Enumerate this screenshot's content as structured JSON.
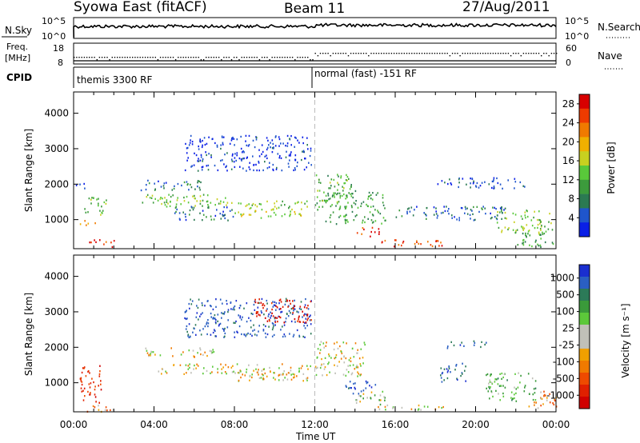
{
  "header": {
    "station": "Syowa East (fitACF)",
    "beam": "Beam 11",
    "date": "27/Aug/2011"
  },
  "top_panels": {
    "nsky_label": "N.Sky",
    "nsky_ticks": [
      "10^5",
      "10^0"
    ],
    "nsearch_label": "N.Search",
    "nsearch_ticks": [
      "10^5",
      "10^0"
    ],
    "freq_label": "Freq.",
    "freq_unit": "[MHz]",
    "freq_ticks": [
      "18",
      "8"
    ],
    "nave_label": "Nave",
    "nave_ticks": [
      "60",
      "0"
    ],
    "cpid_label": "CPID",
    "cpid_segments": [
      {
        "label": "themis 3300 RF",
        "start_hour": 0,
        "end_hour": 12
      },
      {
        "label": "normal (fast) -151 RF",
        "start_hour": 12,
        "end_hour": 24
      }
    ]
  },
  "x_axis": {
    "label": "Time UT",
    "ticks": [
      "00:00",
      "04:00",
      "08:00",
      "12:00",
      "16:00",
      "20:00",
      "00:00"
    ],
    "range_hours": [
      0,
      24
    ]
  },
  "chart_data": [
    {
      "type": "heatmap",
      "parameter": "power",
      "ylabel": "Slant Range [km]",
      "y_ticks": [
        "1000",
        "2000",
        "3000",
        "4000"
      ],
      "ylim": [
        180,
        4600
      ],
      "colorbar": {
        "label": "Power [dB]",
        "ticks": [
          "4",
          "8",
          "12",
          "16",
          "20",
          "24",
          "28"
        ],
        "range": [
          0,
          30
        ],
        "colors": [
          "#0a1fe6",
          "#1f55cc",
          "#2b7a52",
          "#3c9b3c",
          "#59c83a",
          "#c8d020",
          "#f0b000",
          "#f07a00",
          "#ee3b00",
          "#d80000"
        ]
      },
      "regions": [
        {
          "x": [
            0.1,
            0.6
          ],
          "y": [
            1900,
            2150
          ],
          "level": 4
        },
        {
          "x": [
            0.5,
            1.6
          ],
          "y": [
            1150,
            1700
          ],
          "level": 12
        },
        {
          "x": [
            0.3,
            1.2
          ],
          "y": [
            850,
            1000
          ],
          "level": 20
        },
        {
          "x": [
            0.6,
            2.0
          ],
          "y": [
            250,
            450
          ],
          "level": 26
        },
        {
          "x": [
            3.3,
            6.5
          ],
          "y": [
            1850,
            2150
          ],
          "level": 6
        },
        {
          "x": [
            3.4,
            7.8
          ],
          "y": [
            1500,
            1750
          ],
          "level": 14
        },
        {
          "x": [
            4.2,
            11.8
          ],
          "y": [
            1350,
            1550
          ],
          "level": 14
        },
        {
          "x": [
            8.0,
            11.5
          ],
          "y": [
            1050,
            1350
          ],
          "level": 16
        },
        {
          "x": [
            5.0,
            8.0
          ],
          "y": [
            1000,
            1400
          ],
          "level": 6
        },
        {
          "x": [
            5.5,
            11.8
          ],
          "y": [
            2400,
            3400
          ],
          "level": 3
        },
        {
          "x": [
            12.0,
            14.0
          ],
          "y": [
            1300,
            2300
          ],
          "level": 12
        },
        {
          "x": [
            12.5,
            15.5
          ],
          "y": [
            900,
            1800
          ],
          "level": 10
        },
        {
          "x": [
            14.0,
            15.2
          ],
          "y": [
            550,
            800
          ],
          "level": 26
        },
        {
          "x": [
            15.0,
            18.5
          ],
          "y": [
            250,
            450
          ],
          "level": 26
        },
        {
          "x": [
            16.0,
            21.5
          ],
          "y": [
            1000,
            1400
          ],
          "level": 6
        },
        {
          "x": [
            18.0,
            22.5
          ],
          "y": [
            1900,
            2200
          ],
          "level": 4
        },
        {
          "x": [
            21.0,
            23.8
          ],
          "y": [
            600,
            1300
          ],
          "level": 14
        },
        {
          "x": [
            22.0,
            24.0
          ],
          "y": [
            250,
            650
          ],
          "level": 10
        }
      ]
    },
    {
      "type": "heatmap",
      "parameter": "velocity",
      "ylabel": "Slant Range [km]",
      "y_ticks": [
        "1000",
        "2000",
        "3000",
        "4000"
      ],
      "ylim": [
        180,
        4600
      ],
      "colorbar": {
        "label": "Velocity [m s⁻¹]",
        "ticks": [
          "1000",
          "500",
          "100",
          "25",
          "-25",
          "-100",
          "-500",
          "-1000"
        ],
        "levels": [
          1000,
          750,
          500,
          250,
          100,
          25,
          -25,
          -100,
          -250,
          -500,
          -750,
          -1000
        ],
        "colors": [
          "#1a2fd0",
          "#2a5fc2",
          "#2c7a58",
          "#3a9a3a",
          "#5cc83a",
          "#c0c0b8",
          "#c0c0b8",
          "#f0a000",
          "#f07a00",
          "#ee4a00",
          "#e02000",
          "#d00000"
        ]
      },
      "regions": [
        {
          "x": [
            0.3,
            1.4
          ],
          "y": [
            400,
            1500
          ],
          "level": -600
        },
        {
          "x": [
            0.5,
            2.0
          ],
          "y": [
            200,
            400
          ],
          "level": -200
        },
        {
          "x": [
            3.2,
            7.0
          ],
          "y": [
            1750,
            2000
          ],
          "level": 0
        },
        {
          "x": [
            4.0,
            11.8
          ],
          "y": [
            1250,
            1550
          ],
          "level": 0
        },
        {
          "x": [
            8.0,
            11.8
          ],
          "y": [
            1050,
            1350
          ],
          "level": 0
        },
        {
          "x": [
            5.5,
            11.8
          ],
          "y": [
            2300,
            3400
          ],
          "level": 900
        },
        {
          "x": [
            9.0,
            11.8
          ],
          "y": [
            2700,
            3400
          ],
          "level": -700
        },
        {
          "x": [
            12.0,
            14.5
          ],
          "y": [
            1200,
            2200
          ],
          "level": 0
        },
        {
          "x": [
            13.5,
            15.0
          ],
          "y": [
            700,
            1100
          ],
          "level": 900
        },
        {
          "x": [
            14.0,
            15.5
          ],
          "y": [
            400,
            800
          ],
          "level": 200
        },
        {
          "x": [
            15.0,
            18.5
          ],
          "y": [
            250,
            400
          ],
          "level": 0
        },
        {
          "x": [
            18.2,
            19.5
          ],
          "y": [
            1000,
            1600
          ],
          "level": 800
        },
        {
          "x": [
            18.5,
            20.5
          ],
          "y": [
            2000,
            2200
          ],
          "level": 800
        },
        {
          "x": [
            20.5,
            23.0
          ],
          "y": [
            500,
            1300
          ],
          "level": 300
        },
        {
          "x": [
            22.5,
            24.0
          ],
          "y": [
            300,
            800
          ],
          "level": -200
        }
      ]
    }
  ]
}
